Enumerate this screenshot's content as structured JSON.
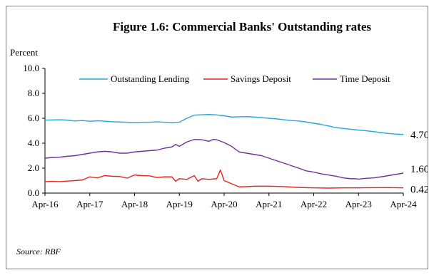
{
  "chart_data": {
    "type": "line",
    "title": "Figure 1.6: Commercial Banks' Outstanding rates",
    "ylabel": "Percent",
    "xlabel": "",
    "ylim": [
      0,
      10
    ],
    "yticks": [
      "0.0",
      "2.0",
      "4.0",
      "6.0",
      "8.0",
      "10.0"
    ],
    "xticks": [
      "Apr-16",
      "Apr-17",
      "Apr-18",
      "Apr-19",
      "Apr-20",
      "Apr-21",
      "Apr-22",
      "Apr-23",
      "Apr-24"
    ],
    "x_start": "Apr-16",
    "x_end": "Apr-24",
    "grid": false,
    "legend_position": "top",
    "source": "Source: RBF",
    "series": [
      {
        "name": "Outstanding Lending",
        "color": "#23A8DC",
        "end_label": "4.70",
        "points": [
          [
            "Apr-16",
            5.85
          ],
          [
            "Jun-16",
            5.87
          ],
          [
            "Aug-16",
            5.88
          ],
          [
            "Oct-16",
            5.85
          ],
          [
            "Dec-16",
            5.78
          ],
          [
            "Feb-17",
            5.82
          ],
          [
            "Apr-17",
            5.76
          ],
          [
            "Jun-17",
            5.8
          ],
          [
            "Aug-17",
            5.77
          ],
          [
            "Oct-17",
            5.72
          ],
          [
            "Dec-17",
            5.7
          ],
          [
            "Feb-18",
            5.68
          ],
          [
            "Apr-18",
            5.66
          ],
          [
            "Jun-18",
            5.68
          ],
          [
            "Aug-18",
            5.68
          ],
          [
            "Oct-18",
            5.72
          ],
          [
            "Dec-18",
            5.68
          ],
          [
            "Feb-19",
            5.66
          ],
          [
            "Apr-19",
            5.68
          ],
          [
            "Jun-19",
            6.0
          ],
          [
            "Aug-19",
            6.25
          ],
          [
            "Oct-19",
            6.28
          ],
          [
            "Dec-19",
            6.3
          ],
          [
            "Feb-20",
            6.27
          ],
          [
            "Apr-20",
            6.2
          ],
          [
            "Jun-20",
            6.1
          ],
          [
            "Aug-20",
            6.12
          ],
          [
            "Oct-20",
            6.13
          ],
          [
            "Dec-20",
            6.1
          ],
          [
            "Feb-21",
            6.05
          ],
          [
            "Apr-21",
            6.0
          ],
          [
            "Jun-21",
            5.95
          ],
          [
            "Aug-21",
            5.88
          ],
          [
            "Oct-21",
            5.82
          ],
          [
            "Dec-21",
            5.78
          ],
          [
            "Feb-22",
            5.7
          ],
          [
            "Apr-22",
            5.6
          ],
          [
            "Jun-22",
            5.5
          ],
          [
            "Aug-22",
            5.38
          ],
          [
            "Oct-22",
            5.25
          ],
          [
            "Dec-22",
            5.18
          ],
          [
            "Feb-23",
            5.12
          ],
          [
            "Apr-23",
            5.05
          ],
          [
            "Jun-23",
            5.0
          ],
          [
            "Aug-23",
            4.93
          ],
          [
            "Oct-23",
            4.85
          ],
          [
            "Dec-23",
            4.78
          ],
          [
            "Feb-24",
            4.73
          ],
          [
            "Apr-24",
            4.7
          ]
        ]
      },
      {
        "name": "Savings Deposit",
        "color": "#E8251B",
        "end_label": "0.42",
        "points": [
          [
            "Apr-16",
            0.92
          ],
          [
            "Jun-16",
            0.94
          ],
          [
            "Aug-16",
            0.92
          ],
          [
            "Oct-16",
            0.96
          ],
          [
            "Dec-16",
            1.0
          ],
          [
            "Feb-17",
            1.05
          ],
          [
            "Apr-17",
            1.3
          ],
          [
            "Jun-17",
            1.22
          ],
          [
            "Aug-17",
            1.4
          ],
          [
            "Oct-17",
            1.35
          ],
          [
            "Dec-17",
            1.33
          ],
          [
            "Feb-18",
            1.2
          ],
          [
            "Apr-18",
            1.45
          ],
          [
            "Jun-18",
            1.4
          ],
          [
            "Aug-18",
            1.38
          ],
          [
            "Oct-18",
            1.25
          ],
          [
            "Dec-18",
            1.3
          ],
          [
            "Feb-19",
            1.3
          ],
          [
            "Mar-19",
            0.95
          ],
          [
            "Apr-19",
            1.15
          ],
          [
            "Jun-19",
            1.1
          ],
          [
            "Aug-19",
            1.4
          ],
          [
            "Sep-19",
            0.95
          ],
          [
            "Oct-19",
            1.15
          ],
          [
            "Dec-19",
            1.1
          ],
          [
            "Feb-20",
            1.15
          ],
          [
            "Mar-20",
            1.85
          ],
          [
            "Apr-20",
            1.0
          ],
          [
            "Jun-20",
            0.75
          ],
          [
            "Aug-20",
            0.5
          ],
          [
            "Oct-20",
            0.52
          ],
          [
            "Dec-20",
            0.55
          ],
          [
            "Apr-21",
            0.55
          ],
          [
            "Aug-21",
            0.52
          ],
          [
            "Dec-21",
            0.45
          ],
          [
            "Apr-22",
            0.42
          ],
          [
            "Aug-22",
            0.4
          ],
          [
            "Dec-22",
            0.42
          ],
          [
            "Apr-23",
            0.42
          ],
          [
            "Aug-23",
            0.43
          ],
          [
            "Dec-23",
            0.44
          ],
          [
            "Apr-24",
            0.42
          ]
        ]
      },
      {
        "name": "Time Deposit",
        "color": "#7030A0",
        "end_label": "1.60",
        "points": [
          [
            "Apr-16",
            2.8
          ],
          [
            "Jun-16",
            2.85
          ],
          [
            "Aug-16",
            2.88
          ],
          [
            "Oct-16",
            2.95
          ],
          [
            "Dec-16",
            3.0
          ],
          [
            "Feb-17",
            3.1
          ],
          [
            "Apr-17",
            3.2
          ],
          [
            "Jun-17",
            3.3
          ],
          [
            "Aug-17",
            3.35
          ],
          [
            "Oct-17",
            3.3
          ],
          [
            "Dec-17",
            3.2
          ],
          [
            "Feb-18",
            3.2
          ],
          [
            "Apr-18",
            3.3
          ],
          [
            "Jun-18",
            3.35
          ],
          [
            "Aug-18",
            3.4
          ],
          [
            "Oct-18",
            3.45
          ],
          [
            "Dec-18",
            3.6
          ],
          [
            "Feb-19",
            3.7
          ],
          [
            "Mar-19",
            3.9
          ],
          [
            "Apr-19",
            3.75
          ],
          [
            "Jun-19",
            4.1
          ],
          [
            "Aug-19",
            4.3
          ],
          [
            "Oct-19",
            4.28
          ],
          [
            "Dec-19",
            4.15
          ],
          [
            "Jan-20",
            4.3
          ],
          [
            "Feb-20",
            4.28
          ],
          [
            "Apr-20",
            4.05
          ],
          [
            "Jun-20",
            3.75
          ],
          [
            "Aug-20",
            3.3
          ],
          [
            "Oct-20",
            3.2
          ],
          [
            "Dec-20",
            3.1
          ],
          [
            "Feb-21",
            3.0
          ],
          [
            "Apr-21",
            2.8
          ],
          [
            "Jun-21",
            2.6
          ],
          [
            "Aug-21",
            2.4
          ],
          [
            "Oct-21",
            2.2
          ],
          [
            "Dec-21",
            2.0
          ],
          [
            "Feb-22",
            1.78
          ],
          [
            "Apr-22",
            1.68
          ],
          [
            "Jun-22",
            1.55
          ],
          [
            "Aug-22",
            1.45
          ],
          [
            "Oct-22",
            1.35
          ],
          [
            "Dec-22",
            1.22
          ],
          [
            "Feb-23",
            1.15
          ],
          [
            "Mar-23",
            1.15
          ],
          [
            "Apr-23",
            1.12
          ],
          [
            "Jun-23",
            1.18
          ],
          [
            "Aug-23",
            1.22
          ],
          [
            "Oct-23",
            1.3
          ],
          [
            "Dec-23",
            1.4
          ],
          [
            "Feb-24",
            1.5
          ],
          [
            "Apr-24",
            1.6
          ]
        ]
      }
    ]
  }
}
